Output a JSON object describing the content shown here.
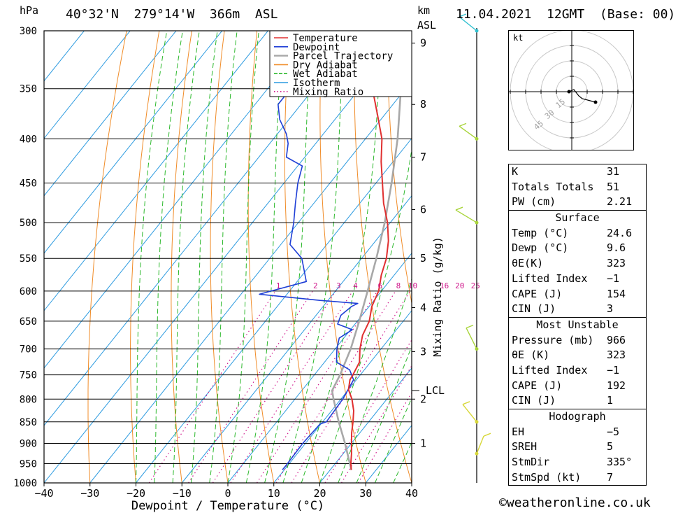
{
  "header": {
    "location": "40°32'N  279°14'W  366m  ASL",
    "datetime": "11.04.2021  12GMT  (Base: 00)",
    "hpa_label": "hPa",
    "km_label": "km",
    "asl_label": "ASL"
  },
  "chart_data": {
    "type": "line",
    "title": "",
    "xlabel": "Dewpoint / Temperature (°C)",
    "ylabel": "hPa",
    "right_label": "Mixing Ratio (g/kg)",
    "x_ticks": [
      -40,
      -30,
      -20,
      -10,
      0,
      10,
      20,
      30,
      40
    ],
    "p_levels": [
      300,
      350,
      400,
      450,
      500,
      550,
      600,
      650,
      700,
      750,
      800,
      850,
      900,
      950,
      1000
    ],
    "km_ticks": [
      {
        "label": "9",
        "p": 310
      },
      {
        "label": "8",
        "p": 365
      },
      {
        "label": "7",
        "p": 420
      },
      {
        "label": "6",
        "p": 483
      },
      {
        "label": "5",
        "p": 550
      },
      {
        "label": "4",
        "p": 627
      },
      {
        "label": "3",
        "p": 705
      },
      {
        "label": "2",
        "p": 800
      },
      {
        "label": "1",
        "p": 900
      }
    ],
    "lcl": {
      "label": "LCL",
      "p": 782
    },
    "mixing_ratio_labels": [
      "1",
      "2",
      "3",
      "4",
      "6",
      "8",
      "10",
      "16",
      "20",
      "25"
    ],
    "legend": [
      "Temperature",
      "Dewpoint",
      "Parcel Trajectory",
      "Dry Adiabat",
      "Wet Adiabat",
      "Isotherm",
      "Mixing Ratio"
    ],
    "series": [
      {
        "name": "Temperature",
        "color": "#e03030",
        "points": [
          [
            966,
            24.6
          ],
          [
            950,
            23.4
          ],
          [
            925,
            21.8
          ],
          [
            900,
            20.0
          ],
          [
            875,
            18.2
          ],
          [
            850,
            16.6
          ],
          [
            825,
            14.8
          ],
          [
            800,
            12.4
          ],
          [
            780,
            10.0
          ],
          [
            760,
            8.6
          ],
          [
            750,
            8.4
          ],
          [
            725,
            7.6
          ],
          [
            700,
            5.4
          ],
          [
            675,
            3.6
          ],
          [
            650,
            2.6
          ],
          [
            625,
            0.6
          ],
          [
            600,
            -0.6
          ],
          [
            575,
            -2.8
          ],
          [
            550,
            -4.6
          ],
          [
            525,
            -7.2
          ],
          [
            500,
            -10.6
          ],
          [
            475,
            -14.8
          ],
          [
            450,
            -18.6
          ],
          [
            425,
            -22.6
          ],
          [
            400,
            -26.4
          ],
          [
            375,
            -31.6
          ],
          [
            350,
            -37.2
          ],
          [
            325,
            -43.2
          ],
          [
            300,
            -49.2
          ]
        ]
      },
      {
        "name": "Dewpoint",
        "color": "#1f3fd6",
        "points": [
          [
            966,
            9.6
          ],
          [
            950,
            9.6
          ],
          [
            900,
            9.4
          ],
          [
            855,
            9.8
          ],
          [
            850,
            10.8
          ],
          [
            800,
            10.4
          ],
          [
            760,
            9.4
          ],
          [
            740,
            6.8
          ],
          [
            725,
            2.6
          ],
          [
            700,
            0.4
          ],
          [
            680,
            -1.0
          ],
          [
            665,
            0.4
          ],
          [
            655,
            -3.8
          ],
          [
            640,
            -4.6
          ],
          [
            625,
            -3.8
          ],
          [
            620,
            -3.0
          ],
          [
            615,
            -11.8
          ],
          [
            605,
            -26.0
          ],
          [
            585,
            -18.0
          ],
          [
            550,
            -23.0
          ],
          [
            530,
            -28.0
          ],
          [
            500,
            -31.0
          ],
          [
            475,
            -34.0
          ],
          [
            450,
            -37.0
          ],
          [
            430,
            -39.0
          ],
          [
            420,
            -44.0
          ],
          [
            405,
            -46.0
          ],
          [
            395,
            -48.0
          ],
          [
            380,
            -52.0
          ],
          [
            365,
            -55.0
          ],
          [
            350,
            -55.0
          ],
          [
            320,
            -59.0
          ],
          [
            300,
            -64.0
          ]
        ]
      },
      {
        "name": "Parcel Trajectory",
        "color": "#a8a8a8",
        "points": [
          [
            966,
            24.6
          ],
          [
            900,
            18.6
          ],
          [
            850,
            13.5
          ],
          [
            800,
            8.4
          ],
          [
            782,
            6.6
          ],
          [
            750,
            5.6
          ],
          [
            700,
            3.4
          ],
          [
            650,
            0.4
          ],
          [
            600,
            -3.0
          ],
          [
            550,
            -6.8
          ],
          [
            500,
            -11.2
          ],
          [
            450,
            -16.6
          ],
          [
            400,
            -23.0
          ],
          [
            350,
            -31.0
          ],
          [
            300,
            -41.0
          ]
        ]
      }
    ],
    "skew_px_per_log": 430,
    "xlim": [
      -40,
      40
    ],
    "ylim": [
      1000,
      300
    ]
  },
  "hodograph": {
    "unit_label": "kt",
    "ring_labels": [
      "15",
      "30",
      "45"
    ]
  },
  "indices": {
    "top": [
      {
        "label": "K",
        "value": "31"
      },
      {
        "label": "Totals Totals",
        "value": "51"
      },
      {
        "label": "PW (cm)",
        "value": "2.21"
      }
    ],
    "surface": {
      "title": "Surface",
      "rows": [
        {
          "label": "Temp (°C)",
          "value": "24.6"
        },
        {
          "label": "Dewp (°C)",
          "value": "9.6"
        },
        {
          "label": "θE(K)",
          "value": "323"
        },
        {
          "label": "Lifted Index",
          "value": "−1"
        },
        {
          "label": "CAPE (J)",
          "value": "154"
        },
        {
          "label": "CIN (J)",
          "value": "3"
        }
      ]
    },
    "most_unstable": {
      "title": "Most Unstable",
      "rows": [
        {
          "label": "Pressure (mb)",
          "value": "966"
        },
        {
          "label": "θE (K)",
          "value": "323"
        },
        {
          "label": "Lifted Index",
          "value": "−1"
        },
        {
          "label": "CAPE (J)",
          "value": "192"
        },
        {
          "label": "CIN (J)",
          "value": "1"
        }
      ]
    },
    "hodograph_box": {
      "title": "Hodograph",
      "rows": [
        {
          "label": "EH",
          "value": "−5"
        },
        {
          "label": "SREH",
          "value": "5"
        },
        {
          "label": "StmDir",
          "value": "335°"
        },
        {
          "label": "StmSpd (kt)",
          "value": "7"
        }
      ]
    }
  },
  "copyright": "©weatheronline.co.uk",
  "colors": {
    "temperature": "#e03030",
    "dewpoint": "#1f3fd6",
    "parcel": "#a8a8a8",
    "dry_adiabat": "#f08c28",
    "wet_adiabat": "#2bb82b",
    "isotherm": "#2c9be0",
    "mixing_ratio": "#d0188c",
    "wind": "#a8d43a"
  }
}
